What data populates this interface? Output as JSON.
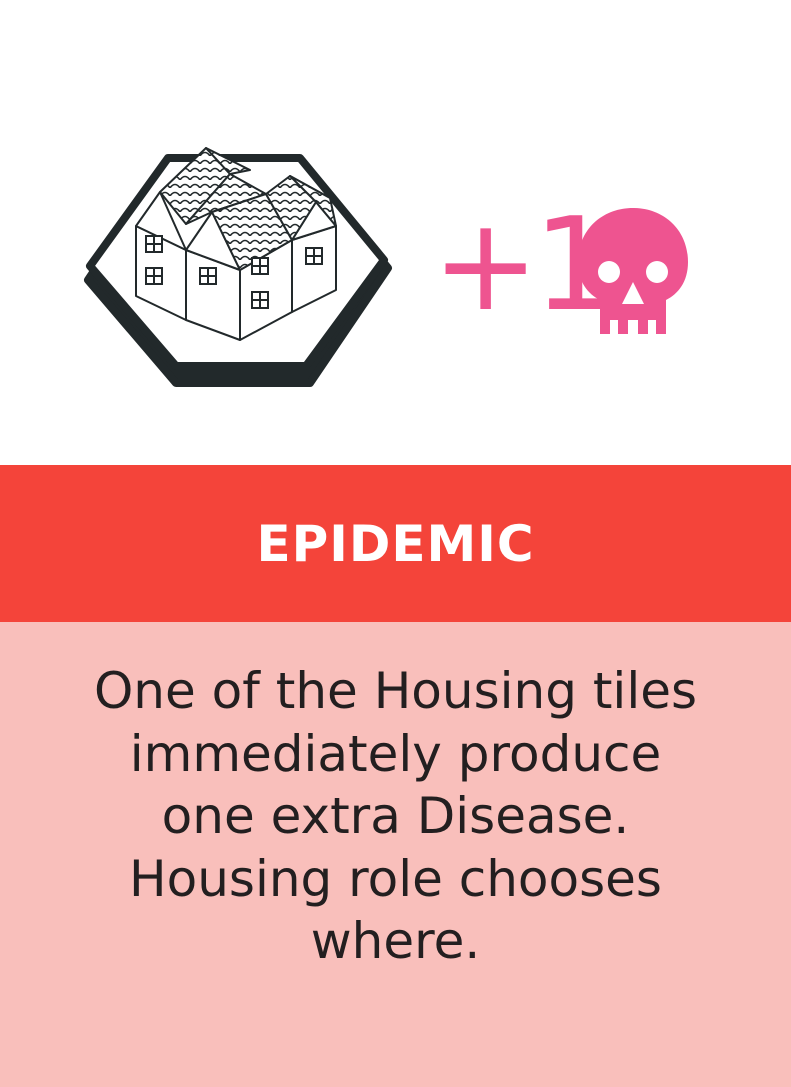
{
  "card": {
    "effect_amount": "+1",
    "effect_icon": "skull-icon",
    "tile_icon": "housing-tile-icon",
    "title": "EPIDEMIC",
    "description": "One of the Housing tiles immediately produce one extra Disease. Housing role chooses where."
  },
  "colors": {
    "background": "#ffffff",
    "title_band": "#f4443a",
    "body_band": "#f9bfbb",
    "accent": "#ee5490",
    "tile_outline": "#22292b",
    "text": "#231f20"
  }
}
